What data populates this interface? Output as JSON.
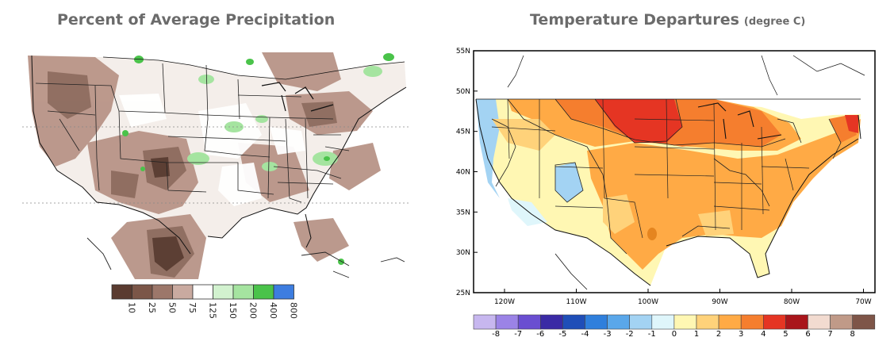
{
  "left_panel": {
    "title": "Percent of Average Precipitation",
    "legend": {
      "labels": [
        "10",
        "25",
        "50",
        "75",
        "125",
        "150",
        "200",
        "400",
        "800"
      ],
      "colors": [
        "#5a3b30",
        "#7b5648",
        "#9c776a",
        "#c9aaa0",
        "#ffffff",
        "#d2f2cf",
        "#a5e4a0",
        "#4ac34a",
        "#3d7de0"
      ]
    }
  },
  "right_panel": {
    "title": "Temperature Departures",
    "subtitle": "(degree C)",
    "lat_labels": [
      "55N",
      "50N",
      "45N",
      "40N",
      "35N",
      "30N",
      "25N"
    ],
    "lon_labels": [
      "120W",
      "110W",
      "100W",
      "90W",
      "80W",
      "70W"
    ],
    "legend": {
      "labels": [
        "-8",
        "-7",
        "-6",
        "-5",
        "-4",
        "-3",
        "-2",
        "-1",
        "0",
        "1",
        "2",
        "3",
        "4",
        "5",
        "6",
        "7",
        "8"
      ],
      "colors": [
        "#c7b7ef",
        "#9b83e6",
        "#6a4ed1",
        "#3a2aa5",
        "#1f4eb8",
        "#2f7fdc",
        "#5aa7ea",
        "#a3d3f3",
        "#dff6fb",
        "#fff7b3",
        "#ffd27a",
        "#ffaa45",
        "#f57e2e",
        "#e53523",
        "#a9151b",
        "#f2dbd0",
        "#c09a88",
        "#7e5548"
      ]
    }
  }
}
